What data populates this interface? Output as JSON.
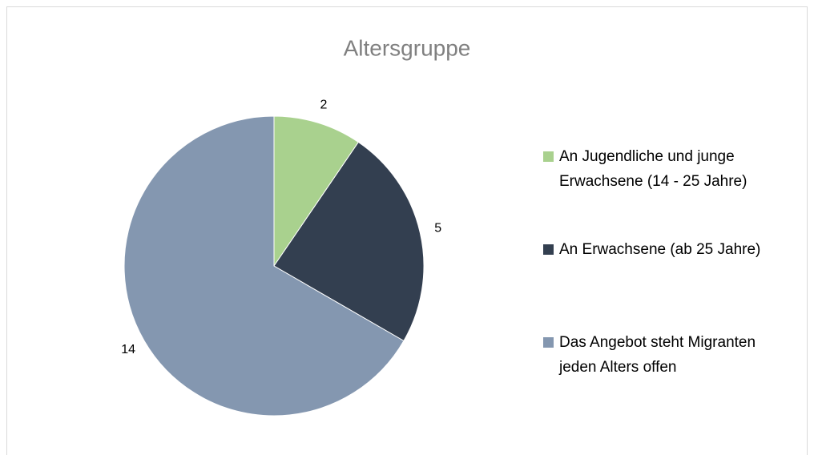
{
  "chart_data": {
    "type": "pie",
    "title": "Altersgruppe",
    "categories": [
      "An Jugendliche und junge Erwachsene (14 - 25 Jahre)",
      "An Erwachsene (ab 25 Jahre)",
      "Das Angebot steht Migranten jeden Alters offen"
    ],
    "values": [
      2,
      5,
      14
    ],
    "colors": [
      "#a9d18e",
      "#333f50",
      "#8497b0"
    ],
    "legend": "right"
  }
}
